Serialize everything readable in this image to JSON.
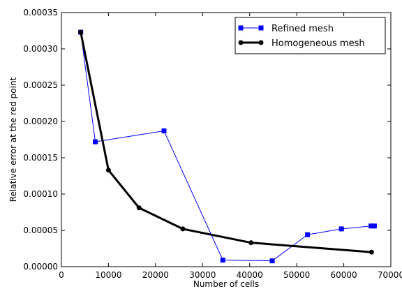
{
  "chart_data": {
    "type": "line",
    "title": "",
    "xlabel": "Number of cells",
    "ylabel": "Relative error at the red point",
    "xlim": [
      0,
      70000
    ],
    "ylim": [
      0,
      0.00035
    ],
    "xticks": [
      "0",
      "10000",
      "20000",
      "30000",
      "40000",
      "50000",
      "60000",
      "70000"
    ],
    "xtick_values": [
      0,
      10000,
      20000,
      30000,
      40000,
      50000,
      60000,
      70000
    ],
    "yticks": [
      "0.00000",
      "0.00005",
      "0.00010",
      "0.00015",
      "0.00020",
      "0.00025",
      "0.00030",
      "0.00035"
    ],
    "ytick_values": [
      0,
      5e-05,
      0.0001,
      0.00015,
      0.0002,
      0.00025,
      0.0003,
      0.00035
    ],
    "grid": false,
    "legend_position": "top-right",
    "series": [
      {
        "name": "Refined mesh",
        "color": "#0000ff",
        "marker": "square",
        "x": [
          4100,
          7200,
          21800,
          34300,
          44800,
          52300,
          59500,
          65800,
          66500
        ],
        "y": [
          0.000323,
          0.000172,
          0.000187,
          9e-06,
          8e-06,
          4.4e-05,
          5.2e-05,
          5.6e-05,
          5.6e-05
        ]
      },
      {
        "name": "Homogeneous mesh",
        "color": "#000000",
        "marker": "circle",
        "x": [
          4100,
          10000,
          16500,
          25800,
          40300,
          65900
        ],
        "y": [
          0.000323,
          0.000133,
          8.1e-05,
          5.2e-05,
          3.3e-05,
          2e-05
        ]
      }
    ]
  }
}
